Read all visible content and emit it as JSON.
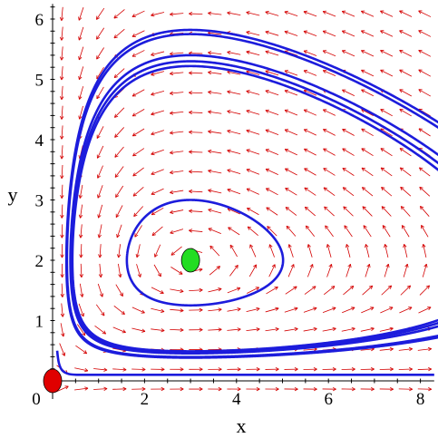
{
  "chart_data": {
    "type": "line",
    "title": "",
    "xlabel": "x",
    "ylabel": "y",
    "xlim": [
      0,
      8.3
    ],
    "ylim": [
      -0.3,
      6.25
    ],
    "xticks": [
      {
        "value": 0,
        "label": "0"
      },
      {
        "value": 2,
        "label": "2"
      },
      {
        "value": 4,
        "label": "4"
      },
      {
        "value": 6,
        "label": "6"
      },
      {
        "value": 8,
        "label": "8"
      }
    ],
    "yticks": [
      {
        "value": 1,
        "label": "1"
      },
      {
        "value": 2,
        "label": "2"
      },
      {
        "value": 3,
        "label": "3"
      },
      {
        "value": 4,
        "label": "4"
      },
      {
        "value": 5,
        "label": "5"
      },
      {
        "value": 6,
        "label": "6"
      }
    ],
    "vector_field": {
      "color": "#d40000",
      "x_range": [
        0,
        8.3
      ],
      "y_range": [
        -0.3,
        6.25
      ],
      "grid": [
        20,
        20
      ],
      "params": {
        "a": 1,
        "b": 0.5,
        "c": 0.6,
        "d": 0.2
      }
    },
    "trajectories": {
      "color": "#1c1cdc",
      "orbits": [
        {
          "x0": 3.0,
          "y0": 3.0
        },
        {
          "x0": 3.0,
          "y0": 5.22
        },
        {
          "x0": 3.0,
          "y0": 5.3
        },
        {
          "x0": 3.0,
          "y0": 5.4
        },
        {
          "x0": 3.0,
          "y0": 5.75
        },
        {
          "x0": 3.0,
          "y0": 5.82
        }
      ],
      "axis_trajectory": {
        "y_start": 0.5,
        "y_axis": 0.1
      }
    },
    "equilibria": [
      {
        "x": 0,
        "y": 0,
        "color": "#e00000"
      },
      {
        "x": 3,
        "y": 2,
        "color": "#22dd22"
      }
    ]
  }
}
